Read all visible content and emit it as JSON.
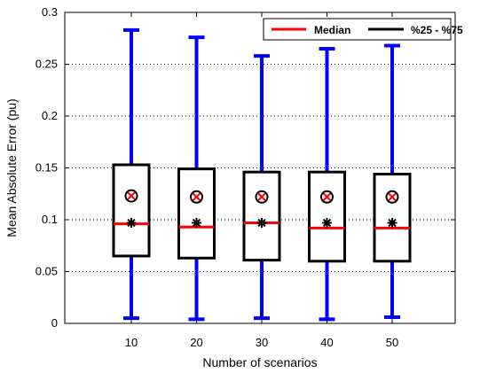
{
  "chart_data": {
    "type": "box",
    "title": "",
    "xlabel": "Number of scenarios",
    "ylabel": "Mean Absolute Error (pu)",
    "ylim": [
      0,
      0.3
    ],
    "yticks": [
      0,
      0.05,
      0.1,
      0.15,
      0.2,
      0.25,
      0.3
    ],
    "ytick_labels": [
      "0",
      "0.05",
      "0.1",
      "0.15",
      "0.2",
      "0.25",
      "0.3"
    ],
    "grid": "horizontal-dotted",
    "legend_position": "top-right",
    "legend": [
      {
        "label": "Median",
        "color": "#ff0000"
      },
      {
        "label": "%25 - %75",
        "color": "#000000"
      }
    ],
    "colors": {
      "whisker": "#0000ff",
      "box": "#000000",
      "median": "#ff0000",
      "mean_marker": "#000000",
      "circle_marker": "#000000",
      "cross_marker": "#ff0000"
    },
    "categories": [
      "10",
      "20",
      "30",
      "40",
      "50"
    ],
    "boxes": [
      {
        "category": "10",
        "whisker_low": 0.005,
        "q1": 0.065,
        "median": 0.096,
        "q3": 0.153,
        "whisker_high": 0.283,
        "star": 0.097,
        "circle": 0.123
      },
      {
        "category": "20",
        "whisker_low": 0.004,
        "q1": 0.063,
        "median": 0.093,
        "q3": 0.149,
        "whisker_high": 0.276,
        "star": 0.097,
        "circle": 0.122
      },
      {
        "category": "30",
        "whisker_low": 0.005,
        "q1": 0.061,
        "median": 0.097,
        "q3": 0.146,
        "whisker_high": 0.258,
        "star": 0.097,
        "circle": 0.122
      },
      {
        "category": "40",
        "whisker_low": 0.004,
        "q1": 0.06,
        "median": 0.092,
        "q3": 0.146,
        "whisker_high": 0.265,
        "star": 0.097,
        "circle": 0.122
      },
      {
        "category": "50",
        "whisker_low": 0.006,
        "q1": 0.06,
        "median": 0.092,
        "q3": 0.144,
        "whisker_high": 0.268,
        "star": 0.097,
        "circle": 0.122
      }
    ]
  }
}
